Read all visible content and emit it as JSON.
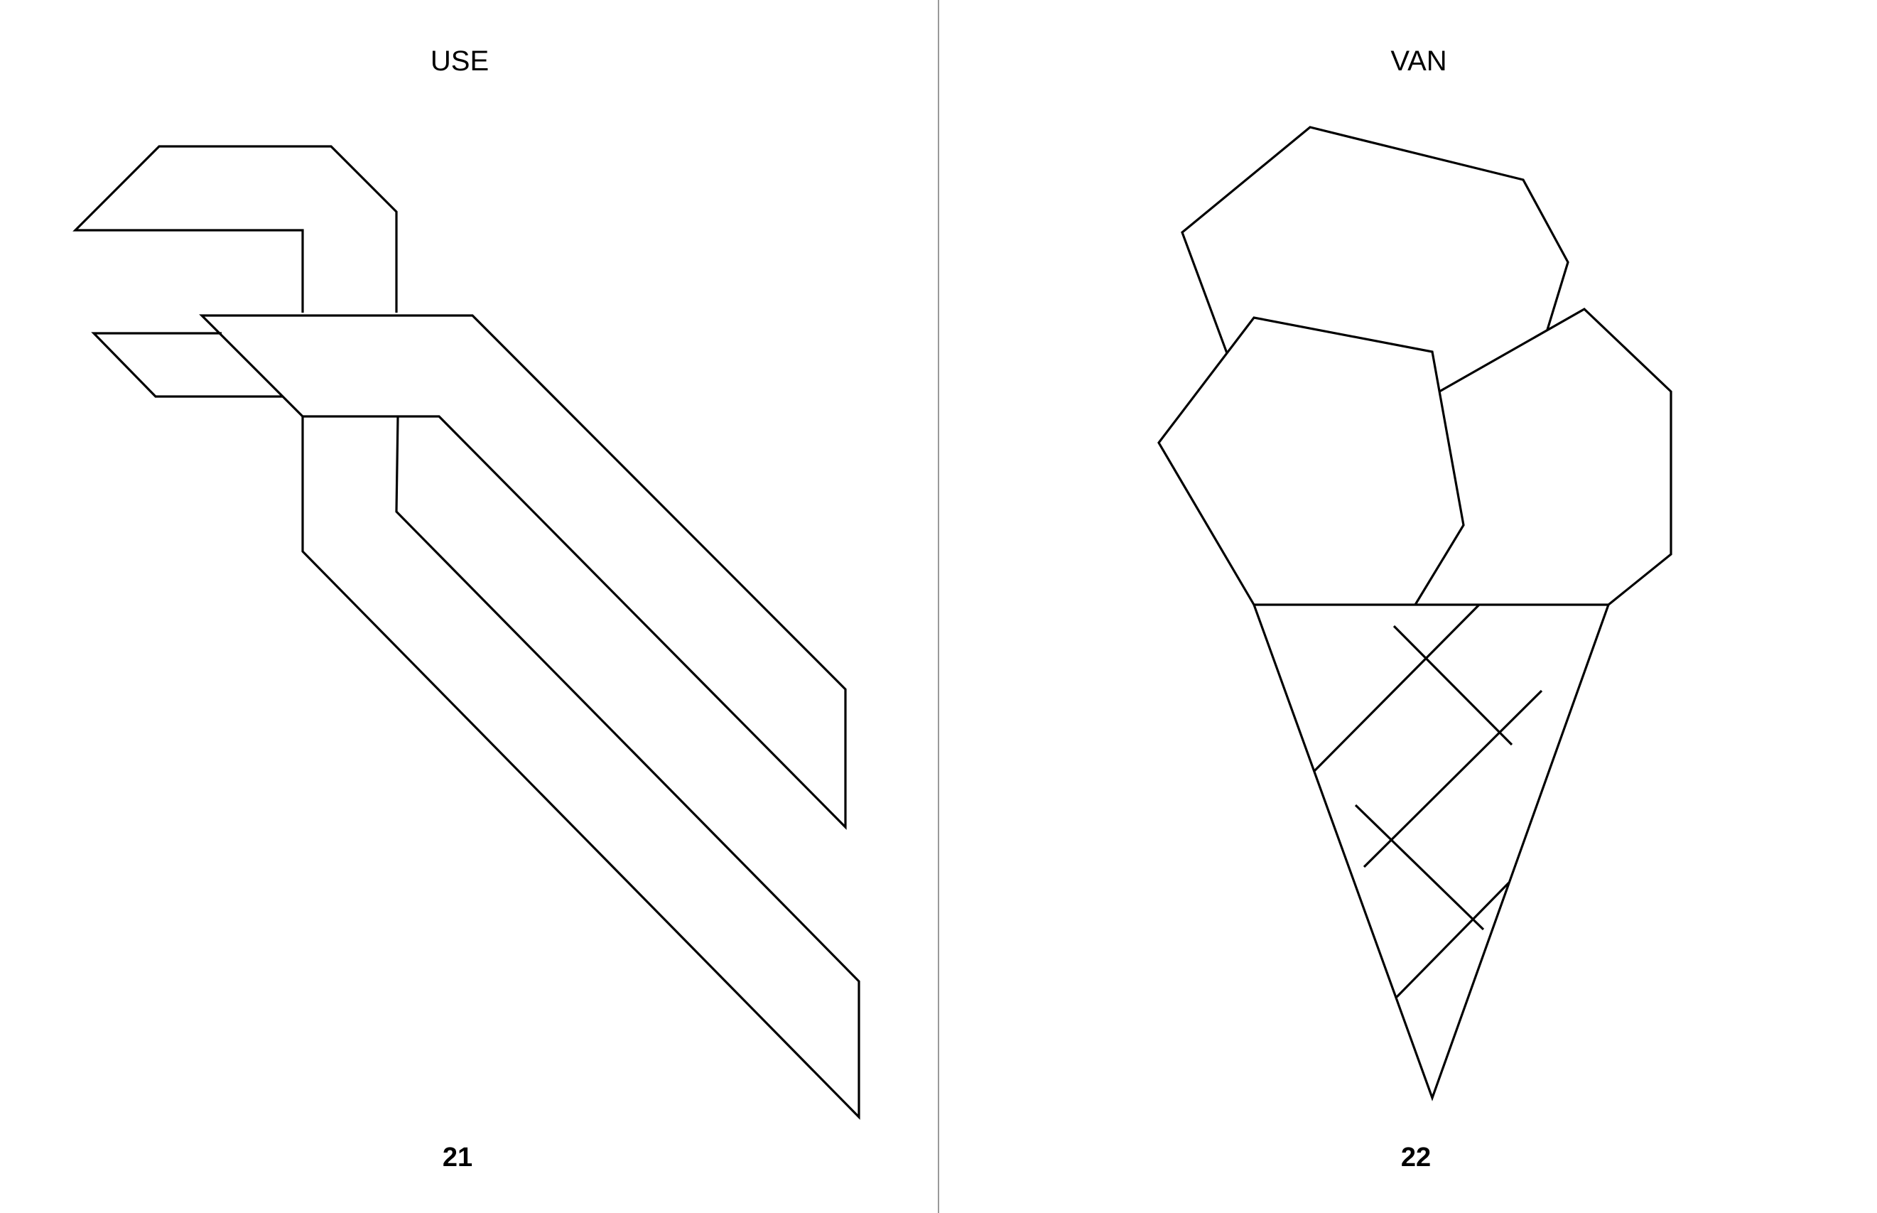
{
  "spread": {
    "left_page": {
      "title": "USE",
      "page_number": "21",
      "figure": "bird-outline"
    },
    "right_page": {
      "title": "VAN",
      "page_number": "22",
      "figure": "ice-cream-cone-outline"
    }
  },
  "colors": {
    "line": "#000000",
    "background": "#ffffff",
    "divider": "#9a9a9a"
  }
}
